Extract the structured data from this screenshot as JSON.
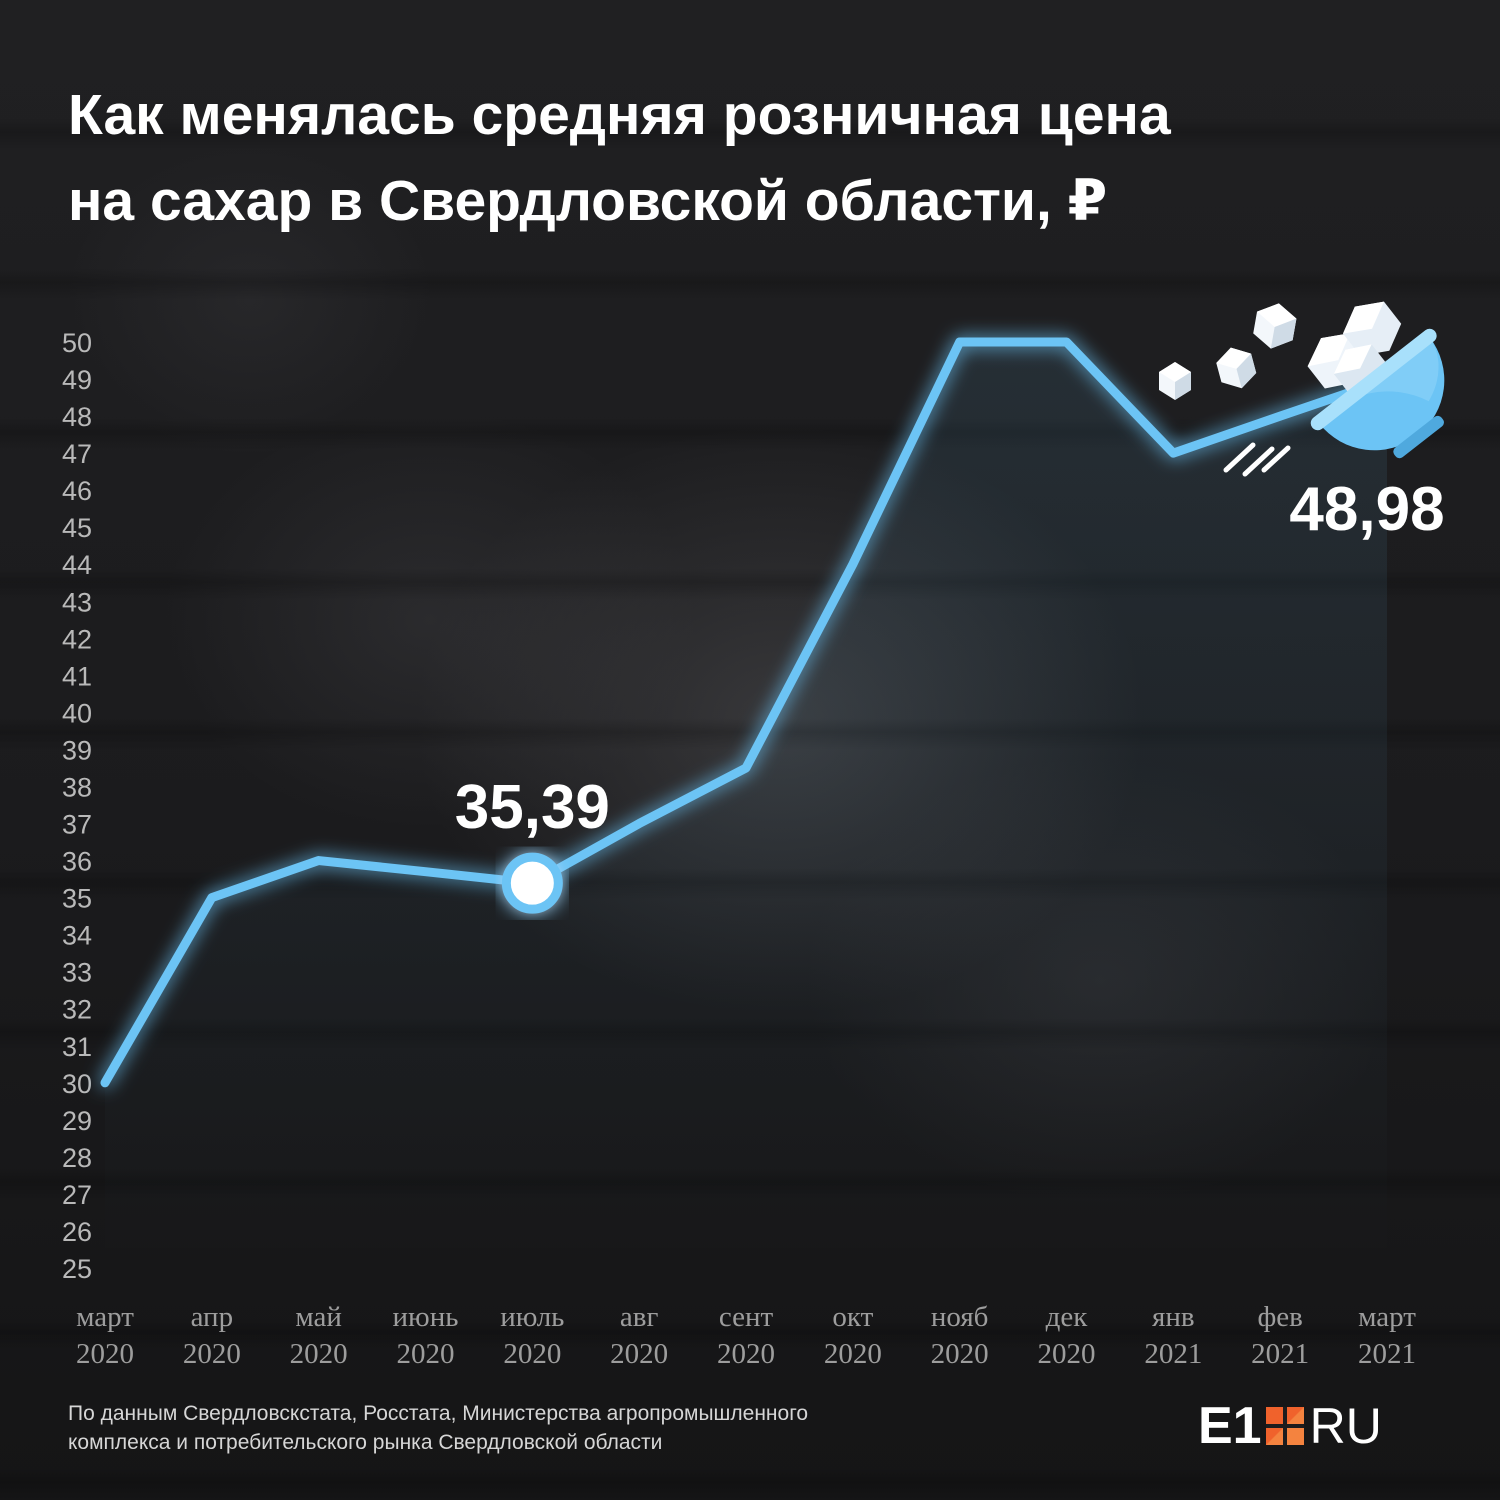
{
  "title": {
    "line1": "Как менялась средняя розничная цена",
    "line2": "на сахар в Свердловской области, ₽"
  },
  "chart_data": {
    "type": "line",
    "categories": [
      [
        "март",
        "2020"
      ],
      [
        "апр",
        "2020"
      ],
      [
        "май",
        "2020"
      ],
      [
        "июнь",
        "2020"
      ],
      [
        "июль",
        "2020"
      ],
      [
        "авг",
        "2020"
      ],
      [
        "сент",
        "2020"
      ],
      [
        "окт",
        "2020"
      ],
      [
        "нояб",
        "2020"
      ],
      [
        "дек",
        "2020"
      ],
      [
        "янв",
        "2021"
      ],
      [
        "фев",
        "2021"
      ],
      [
        "март",
        "2021"
      ]
    ],
    "values": [
      30.0,
      35.0,
      36.0,
      35.7,
      35.39,
      37.0,
      38.5,
      44.0,
      50.0,
      50.0,
      47.0,
      48.0,
      48.98
    ],
    "ylim": [
      25,
      50
    ],
    "yticks": [
      50,
      49,
      48,
      47,
      46,
      45,
      44,
      43,
      42,
      41,
      40,
      39,
      38,
      37,
      36,
      35,
      34,
      33,
      32,
      31,
      30,
      29,
      28,
      27,
      26,
      25
    ],
    "annotations": [
      {
        "index": 4,
        "label": "35,39"
      },
      {
        "index": 12,
        "label": "48,98"
      }
    ],
    "line_color": "#6cc4f5",
    "grid": false,
    "legend": "none"
  },
  "source": {
    "line1": "По данным Свердловскстата, Росстата, Министерства агропромышленного",
    "line2": "комплекса и потребительского рынка Свердловской области"
  },
  "logo": {
    "left": "E1",
    "right": "RU"
  },
  "icons": [
    "sugar-bowl-icon",
    "sugar-cube-icon"
  ]
}
